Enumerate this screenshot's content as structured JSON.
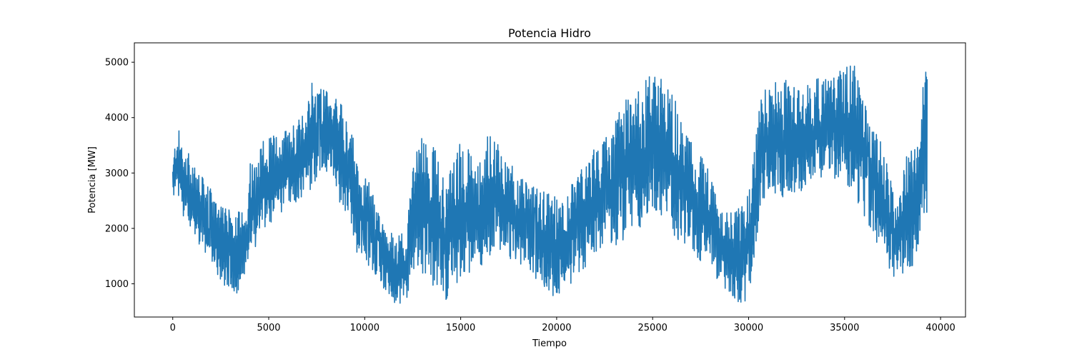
{
  "chart_data": {
    "type": "line",
    "title": "Potencia Hidro",
    "xlabel": "Tiempo",
    "ylabel": "Potencia [MW]",
    "xlim": [
      -2000,
      41300
    ],
    "ylim": [
      400,
      5350
    ],
    "xticks": [
      0,
      5000,
      10000,
      15000,
      20000,
      25000,
      30000,
      35000,
      40000
    ],
    "yticks": [
      1000,
      2000,
      3000,
      4000,
      5000
    ],
    "grid": false,
    "series": [
      {
        "color": "#1f77b4",
        "envelope": {
          "x": [
            0,
            200,
            600,
            1200,
            2000,
            2500,
            3200,
            3800,
            4000,
            4800,
            5600,
            6500,
            7300,
            8000,
            8800,
            9300,
            9600,
            10300,
            11000,
            11600,
            12200,
            12600,
            13000,
            13700,
            14200,
            15000,
            16000,
            16700,
            17300,
            18200,
            19200,
            19800,
            20300,
            21000,
            21800,
            22600,
            23500,
            24300,
            25000,
            25600,
            26200,
            27100,
            27800,
            28600,
            29300,
            29900,
            30200,
            30600,
            31400,
            32300,
            33100,
            34000,
            34800,
            35500,
            36200,
            37000,
            37600,
            38300,
            38800,
            39100,
            39300
          ],
          "upper": [
            3100,
            3900,
            3500,
            3100,
            2700,
            2400,
            2300,
            2400,
            3200,
            3700,
            3700,
            4000,
            4700,
            4500,
            4300,
            4000,
            3200,
            2800,
            2000,
            1900,
            2000,
            3500,
            3800,
            3400,
            2800,
            3600,
            3200,
            4000,
            3300,
            2900,
            2700,
            2600,
            2600,
            2900,
            3400,
            3700,
            4300,
            4500,
            4900,
            4700,
            4400,
            3500,
            3200,
            2300,
            2300,
            2500,
            3100,
            4500,
            4700,
            4700,
            4600,
            4800,
            4900,
            5000,
            4200,
            3500,
            2600,
            3400,
            3500,
            4600,
            5050
          ],
          "lower": [
            2600,
            2400,
            2200,
            1800,
            1400,
            1000,
            800,
            900,
            1500,
            1900,
            2200,
            2500,
            2700,
            3000,
            2400,
            2000,
            1500,
            1300,
            900,
            600,
            700,
            1300,
            1200,
            900,
            700,
            1100,
            1300,
            1500,
            1500,
            1300,
            1000,
            750,
            700,
            1100,
            1300,
            1500,
            1800,
            2000,
            2300,
            2200,
            1800,
            1500,
            1300,
            1000,
            600,
            700,
            1100,
            2300,
            2600,
            2500,
            2800,
            2900,
            2900,
            2600,
            2100,
            1500,
            1100,
            1200,
            1300,
            2300,
            2200
          ]
        }
      }
    ]
  }
}
